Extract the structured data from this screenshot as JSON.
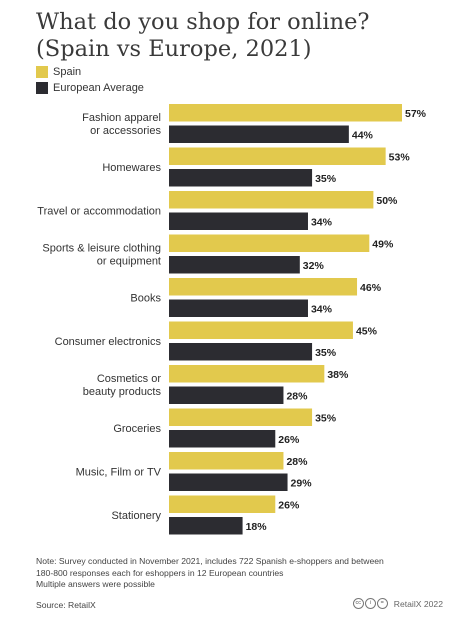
{
  "title_line1": "What do you shop for online?",
  "title_line2": "(Spain vs Europe, 2021)",
  "legend": [
    {
      "label": "Spain",
      "color": "#e2c94d"
    },
    {
      "label": "European Average",
      "color": "#2c2c31"
    }
  ],
  "chart_data": {
    "type": "bar",
    "orientation": "horizontal",
    "categories": [
      [
        "Fashion apparel",
        "or accessories"
      ],
      [
        "Homewares"
      ],
      [
        "Travel or accommodation"
      ],
      [
        "Sports & leisure clothing",
        "or equipment"
      ],
      [
        "Books"
      ],
      [
        "Consumer electronics"
      ],
      [
        "Cosmetics or",
        "beauty products"
      ],
      [
        "Groceries"
      ],
      [
        "Music, Film or TV"
      ],
      [
        "Stationery"
      ]
    ],
    "series": [
      {
        "name": "Spain",
        "color": "#e2c94d",
        "values": [
          57,
          53,
          50,
          49,
          46,
          45,
          38,
          35,
          28,
          26
        ]
      },
      {
        "name": "European Average",
        "color": "#2c2c31",
        "values": [
          44,
          35,
          34,
          32,
          34,
          35,
          28,
          26,
          29,
          18
        ]
      }
    ],
    "value_suffix": "%",
    "xlim": [
      0,
      57
    ],
    "grid": false,
    "legend_position": "top-left"
  },
  "footer": {
    "note_line1": "Note: Survey conducted in November 2021, includes 722 Spanish e-shoppers and between",
    "note_line2": "180-800 responses each for eshoppers in 12 European countries",
    "note_line3": "Multiple answers were possible",
    "source": "Source: RetailX",
    "cc_icons": [
      "cc",
      "i",
      "="
    ],
    "copyright": "RetailX 2022"
  }
}
